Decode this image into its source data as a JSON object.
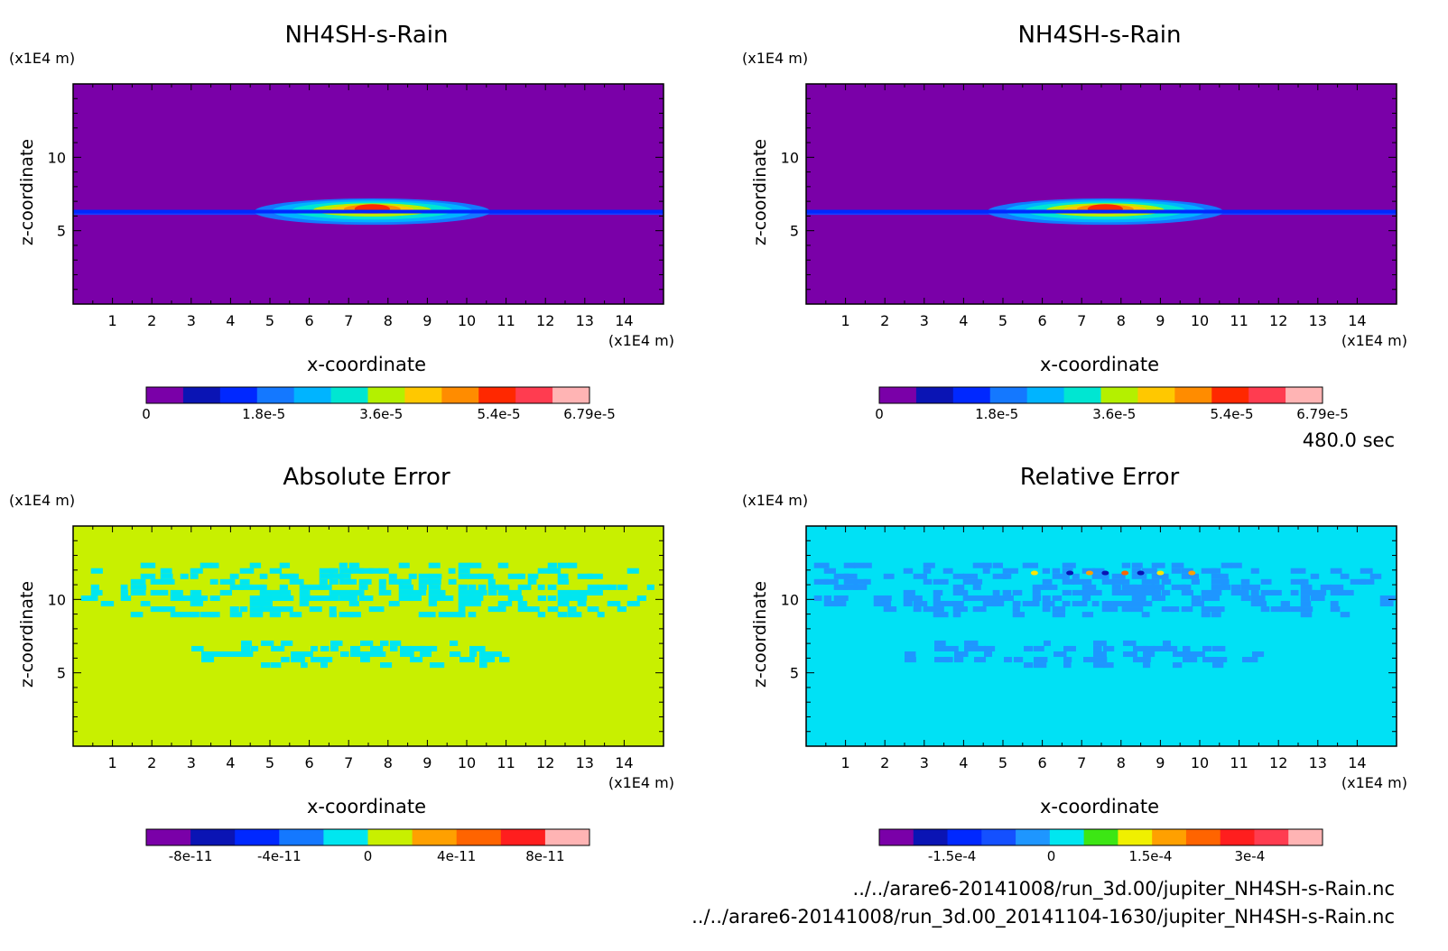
{
  "time_label": "480.0 sec",
  "files": [
    "../../arare6-20141008/run_3d.00/jupiter_NH4SH-s-Rain.nc",
    "../../arare6-20141008/run_3d.00_20141104-1630/jupiter_NH4SH-s-Rain.nc"
  ],
  "chart_data": [
    {
      "type": "heatmap",
      "title": "NH4SH-s-Rain",
      "xlabel": "x-coordinate",
      "ylabel": "z-coordinate",
      "x_unit": "(x1E4 m)",
      "y_unit": "(x1E4 m)",
      "xlim": [
        0,
        15
      ],
      "ylim": [
        0,
        15
      ],
      "x_ticks": [
        "1",
        "2",
        "3",
        "4",
        "5",
        "6",
        "7",
        "8",
        "9",
        "10",
        "11",
        "12",
        "13",
        "14"
      ],
      "y_ticks": [
        "5",
        "10"
      ],
      "background_color": "#7a00a8",
      "features": [
        {
          "kind": "layer",
          "z": 6.2,
          "x_range": [
            0,
            15
          ],
          "color": "#1e3cff"
        },
        {
          "kind": "blob",
          "x_center": 7.6,
          "z_center": 6.3,
          "x_halfwidth": 3.0,
          "z_halfwidth": 0.45
        }
      ],
      "colorbar": {
        "colors": [
          "#7a00a8",
          "#0a14b4",
          "#0028ff",
          "#1478ff",
          "#00b4ff",
          "#00e6d2",
          "#b4f000",
          "#ffc800",
          "#ff8c00",
          "#ff2800",
          "#ff3c50",
          "#ffb4b4"
        ],
        "labels": [
          "0",
          "1.8e-5",
          "3.6e-5",
          "5.4e-5",
          "6.79e-5"
        ],
        "label_values": [
          0,
          1.8e-05,
          3.6e-05,
          5.4e-05,
          6.79e-05
        ],
        "range": [
          0,
          6.79e-05
        ]
      }
    },
    {
      "type": "heatmap",
      "title": "NH4SH-s-Rain",
      "xlabel": "x-coordinate",
      "ylabel": "z-coordinate",
      "x_unit": "(x1E4 m)",
      "y_unit": "(x1E4 m)",
      "xlim": [
        0,
        15
      ],
      "ylim": [
        0,
        15
      ],
      "x_ticks": [
        "1",
        "2",
        "3",
        "4",
        "5",
        "6",
        "7",
        "8",
        "9",
        "10",
        "11",
        "12",
        "13",
        "14"
      ],
      "y_ticks": [
        "5",
        "10"
      ],
      "background_color": "#7a00a8",
      "features": [
        {
          "kind": "layer",
          "z": 6.2,
          "x_range": [
            0,
            15
          ],
          "color": "#1e3cff"
        },
        {
          "kind": "blob",
          "x_center": 7.6,
          "z_center": 6.3,
          "x_halfwidth": 3.0,
          "z_halfwidth": 0.45
        }
      ],
      "colorbar": {
        "colors": [
          "#7a00a8",
          "#0a14b4",
          "#0028ff",
          "#1478ff",
          "#00b4ff",
          "#00e6d2",
          "#b4f000",
          "#ffc800",
          "#ff8c00",
          "#ff2800",
          "#ff3c50",
          "#ffb4b4"
        ],
        "labels": [
          "0",
          "1.8e-5",
          "3.6e-5",
          "5.4e-5",
          "6.79e-5"
        ],
        "label_values": [
          0,
          1.8e-05,
          3.6e-05,
          5.4e-05,
          6.79e-05
        ],
        "range": [
          0,
          6.79e-05
        ]
      }
    },
    {
      "type": "heatmap",
      "title": "Absolute Error",
      "xlabel": "x-coordinate",
      "ylabel": "z-coordinate",
      "x_unit": "(x1E4 m)",
      "y_unit": "(x1E4 m)",
      "xlim": [
        0,
        15
      ],
      "ylim": [
        0,
        15
      ],
      "x_ticks": [
        "1",
        "2",
        "3",
        "4",
        "5",
        "6",
        "7",
        "8",
        "9",
        "10",
        "11",
        "12",
        "13",
        "14"
      ],
      "y_ticks": [
        "5",
        "10"
      ],
      "background_color": "#c8f000",
      "features": [
        {
          "kind": "speckle",
          "color": "#00e6f0",
          "x_range": [
            0.2,
            14.8
          ],
          "z_range": [
            9.0,
            12.5
          ],
          "density": 0.42
        },
        {
          "kind": "speckle",
          "color": "#00e6f0",
          "x_range": [
            2.5,
            11.5
          ],
          "z_range": [
            5.6,
            7.2
          ],
          "density": 0.33
        }
      ],
      "colorbar": {
        "colors": [
          "#7a00a8",
          "#0a14b4",
          "#0028ff",
          "#1478ff",
          "#00e6f0",
          "#c8f000",
          "#ffa000",
          "#ff6400",
          "#ff1e1e",
          "#ffb4b4"
        ],
        "labels": [
          "-8e-11",
          "-4e-11",
          "0",
          "4e-11",
          "8e-11"
        ],
        "label_values": [
          -8e-11,
          -4e-11,
          0,
          4e-11,
          8e-11
        ],
        "range": [
          -1e-10,
          1e-10
        ]
      }
    },
    {
      "type": "heatmap",
      "title": "Relative Error",
      "xlabel": "x-coordinate",
      "ylabel": "z-coordinate",
      "x_unit": "(x1E4 m)",
      "y_unit": "(x1E4 m)",
      "xlim": [
        0,
        15
      ],
      "ylim": [
        0,
        15
      ],
      "x_ticks": [
        "1",
        "2",
        "3",
        "4",
        "5",
        "6",
        "7",
        "8",
        "9",
        "10",
        "11",
        "12",
        "13",
        "14"
      ],
      "y_ticks": [
        "5",
        "10"
      ],
      "background_color": "#00e1f5",
      "features": [
        {
          "kind": "speckle",
          "color": "#1e96ff",
          "x_range": [
            0.2,
            14.8
          ],
          "z_range": [
            9.0,
            12.5
          ],
          "density": 0.42
        },
        {
          "kind": "speckle",
          "color": "#1e96ff",
          "x_range": [
            2.5,
            11.5
          ],
          "z_range": [
            5.6,
            7.2
          ],
          "density": 0.33
        },
        {
          "kind": "hotspots",
          "z": 11.8,
          "x_values": [
            5.8,
            6.7,
            7.2,
            7.6,
            8.1,
            8.5,
            9.0,
            9.8
          ],
          "colors": [
            "#ffe600",
            "#0a14b4",
            "#ffa000",
            "#0a14b4",
            "#ff6400",
            "#0a14b4",
            "#ffe600",
            "#ffa000"
          ]
        }
      ],
      "colorbar": {
        "colors": [
          "#7a00a8",
          "#0a14b4",
          "#0028ff",
          "#1450ff",
          "#1e96ff",
          "#00e6f0",
          "#3ce614",
          "#f0f000",
          "#ffa000",
          "#ff6400",
          "#ff1e1e",
          "#ff3c50",
          "#ffb4b4"
        ],
        "labels": [
          "-1.5e-4",
          "0",
          "1.5e-4",
          "3e-4"
        ],
        "label_values": [
          -0.00015,
          0,
          0.00015,
          0.0003
        ],
        "range": [
          -0.00026,
          0.00041
        ]
      }
    }
  ]
}
